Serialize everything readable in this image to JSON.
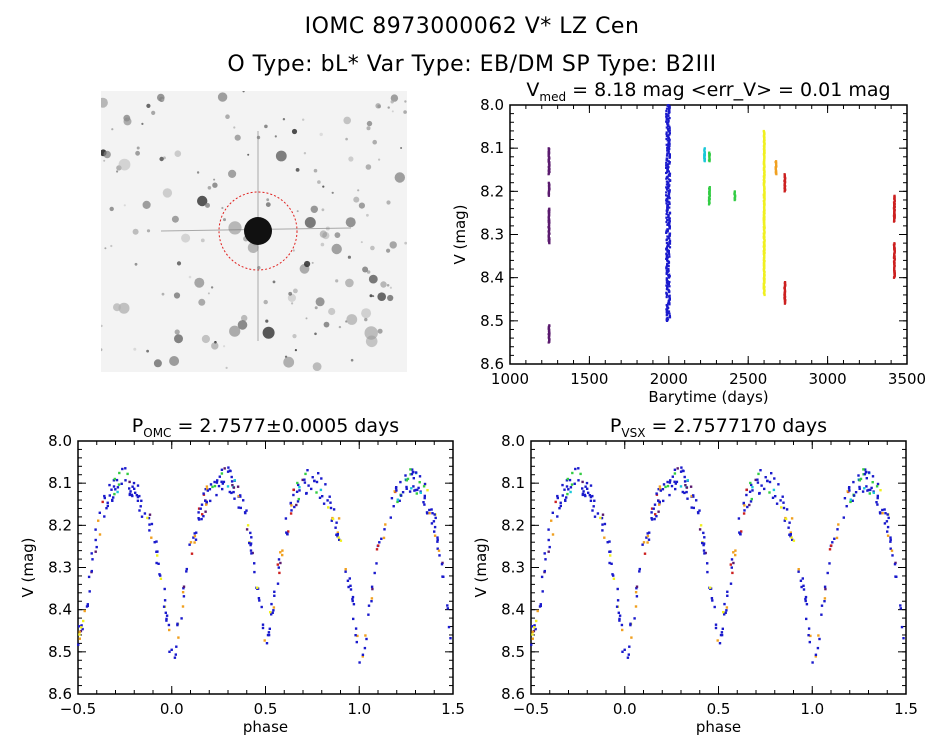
{
  "header": {
    "title_line1": "IOMC 8973000062   V* LZ Cen",
    "title_line2": "O Type: bL*  Var Type: EB/DM  SP Type: B2III"
  },
  "image_panel": {
    "description_icon": "star-field-cutout",
    "circle_color": "#e0201e"
  },
  "colors": {
    "dark_purple": "#5a1a6e",
    "blue": "#1a1acc",
    "cyan": "#19c8d8",
    "green": "#33cc44",
    "yellow": "#f0f020",
    "orange": "#f0a020",
    "red": "#cc2020"
  },
  "chart_data": [
    {
      "type": "scatter",
      "id": "lightcurve",
      "title_main": "V",
      "title_sub": "med",
      "title_rest": " = 8.18 mag <err_V> = 0.01 mag",
      "xlabel": "Barytime (days)",
      "ylabel": "V (mag)",
      "xlim": [
        1000,
        3500
      ],
      "ylim": [
        8.6,
        8.0
      ],
      "xticks": [
        "1000",
        "1500",
        "2000",
        "2500",
        "3000",
        "3500"
      ],
      "yticks": [
        "8.0",
        "8.1",
        "8.2",
        "8.3",
        "8.4",
        "8.5",
        "8.6"
      ],
      "groups": [
        {
          "color": "dark_purple",
          "x": 1245,
          "y_ranges": [
            [
              8.1,
              8.16
            ],
            [
              8.18,
              8.21
            ],
            [
              8.24,
              8.32
            ],
            [
              8.51,
              8.55
            ]
          ]
        },
        {
          "color": "blue",
          "x": 1995,
          "y_ranges": [
            [
              8.0,
              8.5
            ]
          ]
        },
        {
          "color": "cyan",
          "x": 2225,
          "y_ranges": [
            [
              8.1,
              8.13
            ]
          ]
        },
        {
          "color": "green",
          "x": 2255,
          "y_ranges": [
            [
              8.11,
              8.13
            ],
            [
              8.19,
              8.23
            ]
          ]
        },
        {
          "color": "green",
          "x": 2415,
          "y_ranges": [
            [
              8.2,
              8.22
            ]
          ]
        },
        {
          "color": "yellow",
          "x": 2600,
          "y_ranges": [
            [
              8.06,
              8.44
            ]
          ]
        },
        {
          "color": "orange",
          "x": 2675,
          "y_ranges": [
            [
              8.13,
              8.16
            ]
          ]
        },
        {
          "color": "red",
          "x": 2730,
          "y_ranges": [
            [
              8.16,
              8.2
            ],
            [
              8.41,
              8.46
            ]
          ]
        },
        {
          "color": "red",
          "x": 3420,
          "y_ranges": [
            [
              8.21,
              8.27
            ],
            [
              8.32,
              8.4
            ]
          ]
        }
      ]
    },
    {
      "type": "scatter",
      "id": "phase_omc",
      "title_main": "P",
      "title_sub": "OMC",
      "title_rest": " = 2.7577±0.0005 days",
      "xlabel": "phase",
      "ylabel": "V (mag)",
      "xlim": [
        -0.5,
        1.5
      ],
      "ylim": [
        8.6,
        8.0
      ],
      "xticks": [
        "−0.5",
        "0.0",
        "0.5",
        "1.0",
        "1.5"
      ],
      "yticks": [
        "8.0",
        "8.1",
        "8.2",
        "8.3",
        "8.4",
        "8.5",
        "8.6"
      ],
      "curve": {
        "phase": [
          0.0,
          0.03,
          0.06,
          0.1,
          0.15,
          0.2,
          0.25,
          0.3,
          0.35,
          0.4,
          0.43,
          0.46,
          0.5,
          0.54,
          0.57,
          0.6,
          0.65,
          0.7,
          0.75,
          0.8,
          0.85,
          0.9,
          0.95,
          1.0
        ],
        "mag": [
          8.52,
          8.46,
          8.38,
          8.25,
          8.17,
          8.12,
          8.1,
          8.09,
          8.13,
          8.19,
          8.27,
          8.38,
          8.47,
          8.4,
          8.3,
          8.22,
          8.14,
          8.1,
          8.09,
          8.11,
          8.16,
          8.22,
          8.34,
          8.52
        ]
      }
    },
    {
      "type": "scatter",
      "id": "phase_vsx",
      "title_main": "P",
      "title_sub": "VSX",
      "title_rest": " = 2.7577170 days",
      "xlabel": "phase",
      "ylabel": "V (mag)",
      "xlim": [
        -0.5,
        1.5
      ],
      "ylim": [
        8.6,
        8.0
      ],
      "xticks": [
        "−0.5",
        "0.0",
        "0.5",
        "1.0",
        "1.5"
      ],
      "yticks": [
        "8.0",
        "8.1",
        "8.2",
        "8.3",
        "8.4",
        "8.5",
        "8.6"
      ],
      "curve_ref": "phase_omc"
    }
  ]
}
